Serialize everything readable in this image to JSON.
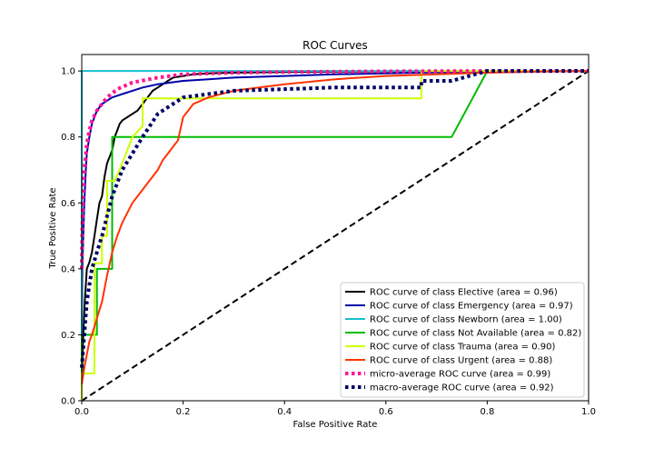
{
  "chart_data": {
    "type": "line",
    "title": "ROC Curves",
    "xlabel": "False Positive Rate",
    "ylabel": "True Positive Rate",
    "xlim": [
      0.0,
      1.0
    ],
    "ylim": [
      0.0,
      1.05
    ],
    "xticks": [
      0.0,
      0.2,
      0.4,
      0.6,
      0.8,
      1.0
    ],
    "xtick_labels": [
      "0.0",
      "0.2",
      "0.4",
      "0.6",
      "0.8",
      "1.0"
    ],
    "yticks": [
      0.0,
      0.2,
      0.4,
      0.6,
      0.8,
      1.0
    ],
    "ytick_labels": [
      "0.0",
      "0.2",
      "0.4",
      "0.6",
      "0.8",
      "1.0"
    ],
    "grid": false,
    "legend_position": "lower-right",
    "series": [
      {
        "name": "ROC curve of class Elective (area = 0.96)",
        "color": "#000000",
        "style": "solid",
        "x": [
          0.0,
          0.003,
          0.006,
          0.01,
          0.015,
          0.02,
          0.025,
          0.03,
          0.035,
          0.04,
          0.045,
          0.05,
          0.055,
          0.06,
          0.065,
          0.07,
          0.075,
          0.08,
          0.09,
          0.1,
          0.11,
          0.12,
          0.13,
          0.14,
          0.15,
          0.16,
          0.17,
          0.18,
          0.2,
          0.22,
          0.25,
          0.3,
          0.4,
          0.5,
          0.6,
          0.7,
          0.8,
          0.9,
          1.0
        ],
        "y": [
          0.05,
          0.2,
          0.3,
          0.4,
          0.42,
          0.45,
          0.5,
          0.55,
          0.6,
          0.62,
          0.68,
          0.72,
          0.74,
          0.76,
          0.8,
          0.82,
          0.84,
          0.85,
          0.86,
          0.87,
          0.88,
          0.9,
          0.92,
          0.94,
          0.95,
          0.96,
          0.97,
          0.98,
          0.985,
          0.99,
          0.993,
          0.995,
          0.997,
          0.998,
          0.999,
          1.0,
          1.0,
          1.0,
          1.0
        ]
      },
      {
        "name": "ROC curve of class Emergency (area = 0.97)",
        "color": "#0000aa",
        "style": "solid",
        "x": [
          0.0,
          0.001,
          0.003,
          0.005,
          0.008,
          0.01,
          0.015,
          0.02,
          0.025,
          0.03,
          0.035,
          0.04,
          0.05,
          0.06,
          0.08,
          0.1,
          0.12,
          0.15,
          0.2,
          0.25,
          0.3,
          0.4,
          0.5,
          0.6,
          0.7,
          0.8,
          0.9,
          1.0
        ],
        "y": [
          0.2,
          0.4,
          0.5,
          0.6,
          0.7,
          0.75,
          0.8,
          0.84,
          0.86,
          0.88,
          0.89,
          0.9,
          0.91,
          0.92,
          0.93,
          0.94,
          0.95,
          0.96,
          0.97,
          0.975,
          0.98,
          0.985,
          0.99,
          0.993,
          0.996,
          0.998,
          0.999,
          1.0
        ]
      },
      {
        "name": "ROC curve of class Newborn (area = 1.00)",
        "color": "#17becf",
        "style": "solid",
        "x": [
          0.0,
          0.0,
          1.0
        ],
        "y": [
          0.0,
          1.0,
          1.0
        ]
      },
      {
        "name": "ROC curve of class Not Available (area = 0.82)",
        "color": "#00bb00",
        "style": "solid",
        "x": [
          0.0,
          0.0,
          0.03,
          0.03,
          0.06,
          0.06,
          0.73,
          0.8,
          1.0
        ],
        "y": [
          0.0,
          0.2,
          0.2,
          0.4,
          0.4,
          0.8,
          0.8,
          1.0,
          1.0
        ]
      },
      {
        "name": "ROC curve of class Trauma (area = 0.90)",
        "color": "#ccff00",
        "style": "solid",
        "x": [
          0.0,
          0.0,
          0.025,
          0.025,
          0.04,
          0.04,
          0.05,
          0.05,
          0.065,
          0.08,
          0.1,
          0.12,
          0.12,
          0.67,
          0.67,
          1.0
        ],
        "y": [
          0.0,
          0.083,
          0.083,
          0.417,
          0.417,
          0.5,
          0.5,
          0.667,
          0.667,
          0.72,
          0.8,
          0.833,
          0.917,
          0.917,
          1.0,
          1.0
        ]
      },
      {
        "name": "ROC curve of class Urgent (area = 0.88)",
        "color": "#ff3300",
        "style": "solid",
        "x": [
          0.0,
          0.005,
          0.01,
          0.015,
          0.02,
          0.03,
          0.04,
          0.05,
          0.06,
          0.07,
          0.08,
          0.09,
          0.1,
          0.11,
          0.12,
          0.13,
          0.14,
          0.15,
          0.16,
          0.17,
          0.18,
          0.19,
          0.2,
          0.21,
          0.22,
          0.25,
          0.3,
          0.35,
          0.4,
          0.5,
          0.6,
          0.7,
          0.8,
          0.9,
          1.0
        ],
        "y": [
          0.05,
          0.1,
          0.14,
          0.18,
          0.2,
          0.25,
          0.3,
          0.38,
          0.45,
          0.5,
          0.54,
          0.57,
          0.6,
          0.62,
          0.64,
          0.66,
          0.68,
          0.7,
          0.73,
          0.75,
          0.77,
          0.79,
          0.86,
          0.88,
          0.9,
          0.92,
          0.94,
          0.95,
          0.96,
          0.975,
          0.985,
          0.99,
          0.995,
          0.998,
          1.0
        ]
      },
      {
        "name": "micro-average ROC curve (area = 0.99)",
        "color": "#ff1493",
        "style": "dotted",
        "x": [
          0.0,
          0.002,
          0.005,
          0.01,
          0.015,
          0.02,
          0.03,
          0.04,
          0.05,
          0.07,
          0.1,
          0.15,
          0.2,
          0.3,
          0.4,
          0.6,
          0.8,
          1.0
        ],
        "y": [
          0.4,
          0.6,
          0.7,
          0.78,
          0.82,
          0.85,
          0.88,
          0.9,
          0.92,
          0.945,
          0.965,
          0.98,
          0.99,
          0.995,
          0.997,
          0.999,
          1.0,
          1.0
        ]
      },
      {
        "name": "macro-average ROC curve (area = 0.92)",
        "color": "#000066",
        "style": "dotted",
        "x": [
          0.0,
          0.005,
          0.01,
          0.02,
          0.03,
          0.04,
          0.05,
          0.06,
          0.08,
          0.1,
          0.12,
          0.15,
          0.18,
          0.2,
          0.25,
          0.3,
          0.4,
          0.5,
          0.6,
          0.67,
          0.67,
          0.73,
          0.8,
          0.9,
          1.0
        ],
        "y": [
          0.1,
          0.2,
          0.3,
          0.4,
          0.45,
          0.5,
          0.56,
          0.62,
          0.7,
          0.75,
          0.8,
          0.87,
          0.9,
          0.92,
          0.93,
          0.94,
          0.945,
          0.95,
          0.95,
          0.95,
          0.97,
          0.97,
          1.0,
          1.0,
          1.0
        ]
      }
    ],
    "reference_line": {
      "x": [
        0.0,
        1.0
      ],
      "y": [
        0.0,
        1.0
      ],
      "color": "#000000",
      "style": "dashed"
    }
  }
}
